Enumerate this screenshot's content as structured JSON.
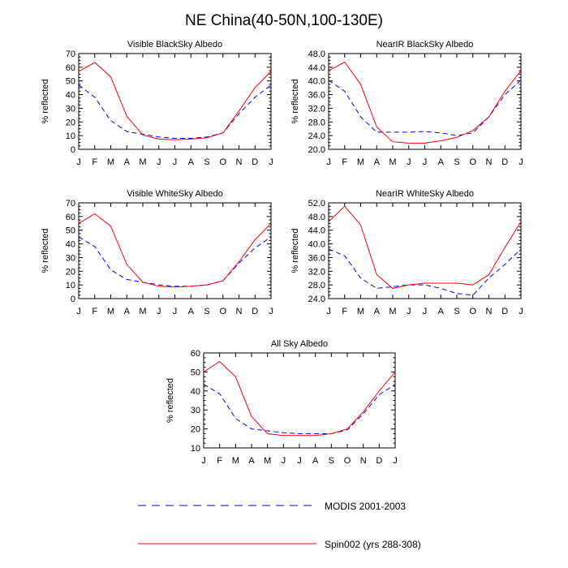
{
  "figure": {
    "title": "NE China(40-50N,100-130E)",
    "legend": {
      "placement": "bottom",
      "items": [
        {
          "label": "MODIS 2001-2003",
          "color": "#0000ff",
          "style": "dashed"
        },
        {
          "label": "Spin002 (yrs 288-308)",
          "color": "#ff0000",
          "style": "solid"
        }
      ]
    }
  },
  "chart_data": [
    {
      "type": "line",
      "title": "Visible BlackSky Albedo",
      "ylabel": "% reflected",
      "x": [
        "J",
        "F",
        "M",
        "A",
        "M",
        "J",
        "J",
        "A",
        "S",
        "O",
        "N",
        "D",
        "J"
      ],
      "ylim": [
        0,
        70
      ],
      "yticks": [
        "0",
        "10",
        "20",
        "30",
        "40",
        "50",
        "60",
        "70"
      ],
      "series": [
        {
          "name": "MODIS 2001-2003",
          "color": "#0000ff",
          "dash": true,
          "values": [
            47,
            38,
            21,
            13,
            11,
            9,
            8,
            8,
            9,
            12,
            26,
            38,
            47
          ]
        },
        {
          "name": "Spin002 (yrs 288-308)",
          "color": "#ff0000",
          "dash": false,
          "values": [
            57,
            63.5,
            53,
            24,
            10.5,
            7.5,
            7,
            7.5,
            8.5,
            12,
            28,
            45,
            57
          ]
        }
      ]
    },
    {
      "type": "line",
      "title": "NearIR BlackSky Albedo",
      "ylabel": "% reflected",
      "x": [
        "J",
        "F",
        "M",
        "A",
        "M",
        "J",
        "J",
        "A",
        "S",
        "O",
        "N",
        "D",
        "J"
      ],
      "ylim": [
        20,
        48
      ],
      "yticks": [
        "20.0",
        "24.0",
        "28.0",
        "32.0",
        "36.0",
        "40.0",
        "44.0",
        "48.0"
      ],
      "series": [
        {
          "name": "MODIS 2001-2003",
          "color": "#0000ff",
          "dash": true,
          "values": [
            40.2,
            37,
            29.5,
            25,
            25,
            25,
            25.2,
            24.8,
            24,
            24.8,
            29.5,
            36,
            40.2
          ]
        },
        {
          "name": "Spin002 (yrs 288-308)",
          "color": "#ff0000",
          "dash": false,
          "values": [
            43,
            45.5,
            39,
            26.5,
            22.2,
            21.8,
            21.8,
            22.5,
            23.5,
            25.5,
            29.5,
            37,
            43
          ]
        }
      ]
    },
    {
      "type": "line",
      "title": "Visible WhiteSky Albedo",
      "ylabel": "% reflected",
      "x": [
        "J",
        "F",
        "M",
        "A",
        "M",
        "J",
        "J",
        "A",
        "S",
        "O",
        "N",
        "D",
        "J"
      ],
      "ylim": [
        0,
        70
      ],
      "yticks": [
        "0",
        "10",
        "20",
        "30",
        "40",
        "50",
        "60",
        "70"
      ],
      "series": [
        {
          "name": "MODIS 2001-2003",
          "color": "#0000ff",
          "dash": true,
          "values": [
            45,
            38,
            21,
            14,
            12,
            10,
            9,
            9,
            10,
            13,
            26,
            37,
            45
          ]
        },
        {
          "name": "Spin002 (yrs 288-308)",
          "color": "#ff0000",
          "dash": false,
          "values": [
            55,
            62,
            53,
            25,
            12,
            9,
            8.5,
            9,
            10,
            13,
            27,
            43,
            55
          ]
        }
      ]
    },
    {
      "type": "line",
      "title": "NearIR WhiteSky Albedo",
      "ylabel": "% reflected",
      "x": [
        "J",
        "F",
        "M",
        "A",
        "M",
        "J",
        "J",
        "A",
        "S",
        "O",
        "N",
        "D",
        "J"
      ],
      "ylim": [
        24,
        52
      ],
      "yticks": [
        "24.0",
        "28.0",
        "32.0",
        "36.0",
        "40.0",
        "44.0",
        "48.0",
        "52.0"
      ],
      "series": [
        {
          "name": "MODIS 2001-2003",
          "color": "#0000ff",
          "dash": true,
          "values": [
            38.5,
            36.5,
            30,
            27,
            27.5,
            28,
            28,
            27,
            25.5,
            25,
            30,
            34,
            38.5
          ]
        },
        {
          "name": "Spin002 (yrs 288-308)",
          "color": "#ff0000",
          "dash": false,
          "values": [
            46.5,
            51,
            45.5,
            31,
            27,
            28,
            28.5,
            28.5,
            28.5,
            28,
            31,
            39,
            46.5
          ]
        }
      ]
    },
    {
      "type": "line",
      "title": "All Sky Albedo",
      "ylabel": "% reflected",
      "x": [
        "J",
        "F",
        "M",
        "A",
        "M",
        "J",
        "J",
        "A",
        "S",
        "O",
        "N",
        "D",
        "J"
      ],
      "ylim": [
        10,
        60
      ],
      "yticks": [
        "10",
        "20",
        "30",
        "40",
        "50",
        "60"
      ],
      "series": [
        {
          "name": "MODIS 2001-2003",
          "color": "#0000ff",
          "dash": true,
          "values": [
            43.5,
            38.5,
            25.5,
            20,
            19,
            18,
            17.5,
            17.5,
            17.5,
            19.5,
            28,
            38,
            43.5
          ]
        },
        {
          "name": "Spin002 (yrs 288-308)",
          "color": "#ff0000",
          "dash": false,
          "values": [
            50,
            55.5,
            47.5,
            26.5,
            17.5,
            16.5,
            16.5,
            16.5,
            17.5,
            20,
            29,
            40,
            50
          ]
        }
      ]
    }
  ]
}
